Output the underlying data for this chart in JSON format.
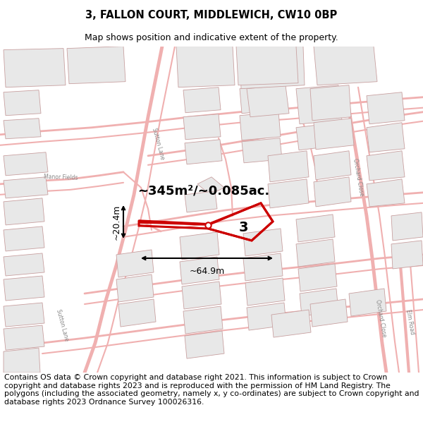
{
  "title": "3, FALLON COURT, MIDDLEWICH, CW10 0BP",
  "subtitle": "Map shows position and indicative extent of the property.",
  "footer": "Contains OS data © Crown copyright and database right 2021. This information is subject to Crown copyright and database rights 2023 and is reproduced with the permission of HM Land Registry. The polygons (including the associated geometry, namely x, y co-ordinates) are subject to Crown copyright and database rights 2023 Ordnance Survey 100026316.",
  "bg_color": "#ffffff",
  "road_color": "#f0b0b0",
  "building_fill": "#e8e8e8",
  "building_edge": "#c8a0a0",
  "highlight_color": "#cc0000",
  "area_label": "~345m²/~0.085ac.",
  "width_label": "~64.9m",
  "height_label": "~20.4m",
  "plot_number": "3",
  "title_fontsize": 10.5,
  "subtitle_fontsize": 9,
  "footer_fontsize": 7.8,
  "label_color": "#888888",
  "dim_fontsize": 9
}
